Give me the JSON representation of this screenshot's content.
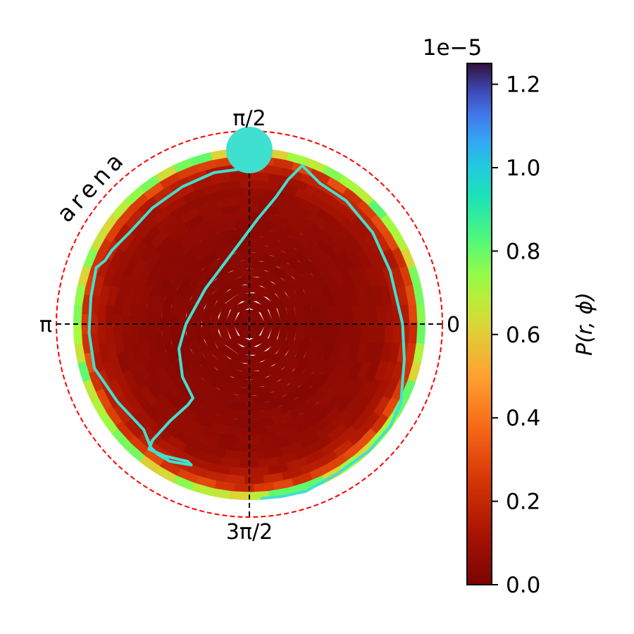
{
  "chart_data": {
    "type": "heatmap",
    "projection": "polar",
    "angular_tick_labels": [
      "0",
      "π/2",
      "π",
      "3π/2"
    ],
    "arena_label": "arena",
    "colors": {
      "arena_circle": "#ff0000",
      "trajectory": "#40e0d0",
      "goal_marker": "#40e0d0",
      "crosshair": "#000000"
    },
    "colorbar": {
      "label": "P(r, ϕ)",
      "offset_text": "1e−5",
      "colormap": "turbo",
      "range": [
        0.0,
        1.25
      ],
      "ticks": [
        0.0,
        0.2,
        0.4,
        0.6,
        0.8,
        1.0,
        1.2
      ],
      "tick_labels": [
        "0.0",
        "0.2",
        "0.4",
        "0.6",
        "0.8",
        "1.0",
        "1.2"
      ]
    },
    "density": {
      "radial_profile": [
        {
          "r": 0.0,
          "value": 0.03
        },
        {
          "r": 0.5,
          "value": 0.04
        },
        {
          "r": 0.75,
          "value": 0.07
        },
        {
          "r": 0.85,
          "value": 0.12
        },
        {
          "r": 0.92,
          "value": 0.2
        },
        {
          "r": 0.96,
          "value": 0.4
        },
        {
          "r": 1.0,
          "value": 1.05
        }
      ]
    },
    "goal": {
      "r": 1.0,
      "phi_deg": 90
    },
    "trajectory": [
      {
        "x": 0.07,
        "y": -0.99
      },
      {
        "x": 0.18,
        "y": -0.98
      },
      {
        "x": 0.32,
        "y": -0.95
      },
      {
        "x": 0.5,
        "y": -0.85
      },
      {
        "x": 0.68,
        "y": -0.72
      },
      {
        "x": 0.8,
        "y": -0.58
      },
      {
        "x": 0.86,
        "y": -0.45
      },
      {
        "x": 0.88,
        "y": -0.2
      },
      {
        "x": 0.87,
        "y": 0.0
      },
      {
        "x": 0.8,
        "y": 0.3
      },
      {
        "x": 0.7,
        "y": 0.52
      },
      {
        "x": 0.55,
        "y": 0.7
      },
      {
        "x": 0.4,
        "y": 0.8
      },
      {
        "x": 0.3,
        "y": 0.9
      },
      {
        "x": 0.22,
        "y": 0.82
      },
      {
        "x": 0.15,
        "y": 0.72
      },
      {
        "x": 0.05,
        "y": 0.6
      },
      {
        "x": -0.1,
        "y": 0.4
      },
      {
        "x": -0.25,
        "y": 0.2
      },
      {
        "x": -0.36,
        "y": 0.0
      },
      {
        "x": -0.4,
        "y": -0.14
      },
      {
        "x": -0.38,
        "y": -0.3
      },
      {
        "x": -0.32,
        "y": -0.42
      },
      {
        "x": -0.35,
        "y": -0.46
      },
      {
        "x": -0.45,
        "y": -0.55
      },
      {
        "x": -0.55,
        "y": -0.66
      },
      {
        "x": -0.57,
        "y": -0.71
      },
      {
        "x": -0.48,
        "y": -0.75
      },
      {
        "x": -0.35,
        "y": -0.78
      },
      {
        "x": -0.33,
        "y": -0.8
      },
      {
        "x": -0.45,
        "y": -0.78
      },
      {
        "x": -0.52,
        "y": -0.74
      },
      {
        "x": -0.56,
        "y": -0.7
      },
      {
        "x": -0.6,
        "y": -0.6
      },
      {
        "x": -0.75,
        "y": -0.44
      },
      {
        "x": -0.88,
        "y": -0.25
      },
      {
        "x": -0.91,
        "y": -0.05
      },
      {
        "x": -0.9,
        "y": 0.15
      },
      {
        "x": -0.87,
        "y": 0.32
      },
      {
        "x": -0.82,
        "y": 0.36
      },
      {
        "x": -0.78,
        "y": 0.42
      },
      {
        "x": -0.68,
        "y": 0.52
      },
      {
        "x": -0.55,
        "y": 0.66
      },
      {
        "x": -0.38,
        "y": 0.78
      },
      {
        "x": -0.2,
        "y": 0.86
      },
      {
        "x": -0.05,
        "y": 0.88
      }
    ]
  }
}
